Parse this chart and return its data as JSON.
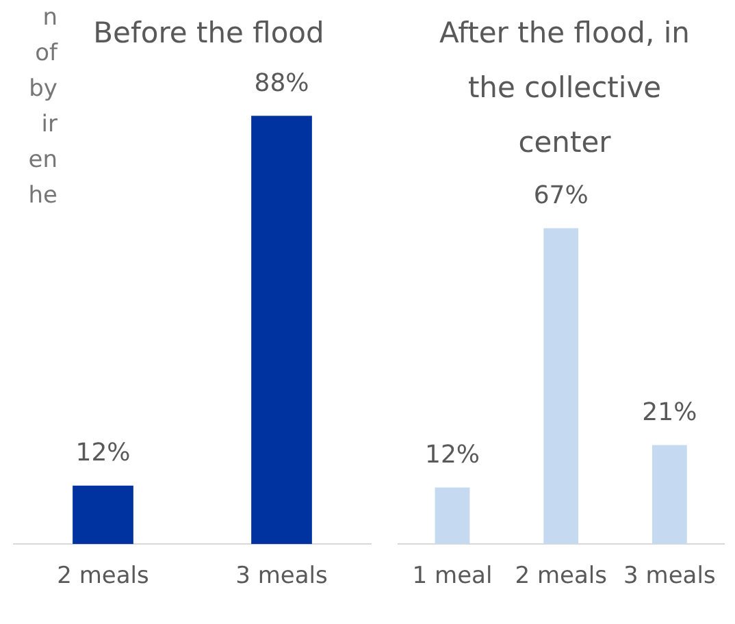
{
  "chart_data": [
    {
      "type": "bar",
      "title": "Before the flood",
      "categories": [
        "2 meals",
        "3 meals"
      ],
      "values": [
        12,
        88
      ],
      "value_labels": [
        "12%",
        "88%"
      ],
      "color": "#0033a0",
      "grid": false,
      "annotations": [
        "n",
        "of",
        "by",
        "ir",
        "en",
        "he"
      ]
    },
    {
      "type": "bar",
      "title": "After the flood, in the collective center",
      "categories": [
        "1 meal",
        "2 meals",
        "3 meals"
      ],
      "values": [
        12,
        67,
        21
      ],
      "value_labels": [
        "12%",
        "67%",
        "21%"
      ],
      "color": "#c5d9f1",
      "grid": false
    }
  ]
}
